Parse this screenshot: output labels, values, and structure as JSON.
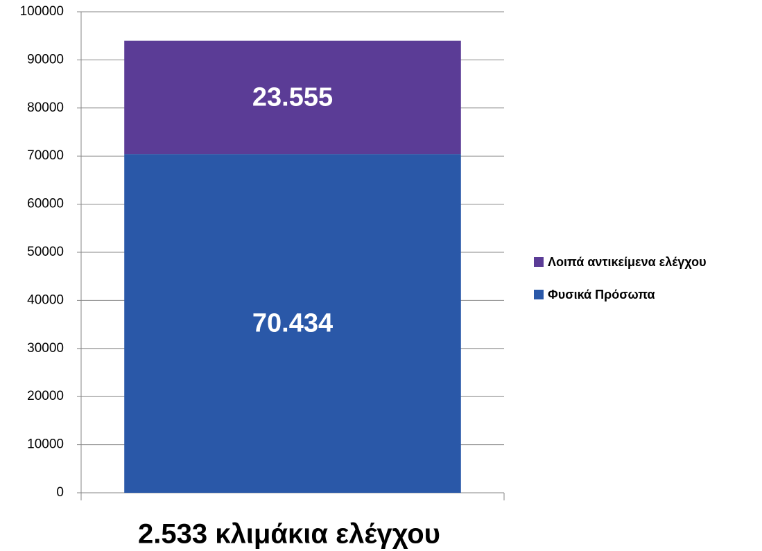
{
  "chart_data": {
    "type": "bar",
    "stacked": true,
    "categories": [
      "2.533 κλιμάκια ελέγχου"
    ],
    "series": [
      {
        "name": "Φυσικά Πρόσωπα",
        "color": "#2a58a8",
        "values": [
          70434
        ],
        "value_labels": [
          "70.434"
        ]
      },
      {
        "name": "Λοιπά αντικείμενα ελέγχου",
        "color": "#5b3c96",
        "values": [
          23555
        ],
        "value_labels": [
          "23.555"
        ]
      }
    ],
    "ylim": [
      0,
      100000
    ],
    "yticks": [
      0,
      10000,
      20000,
      30000,
      40000,
      50000,
      60000,
      70000,
      80000,
      90000,
      100000
    ],
    "grid": true,
    "legend": "right"
  }
}
